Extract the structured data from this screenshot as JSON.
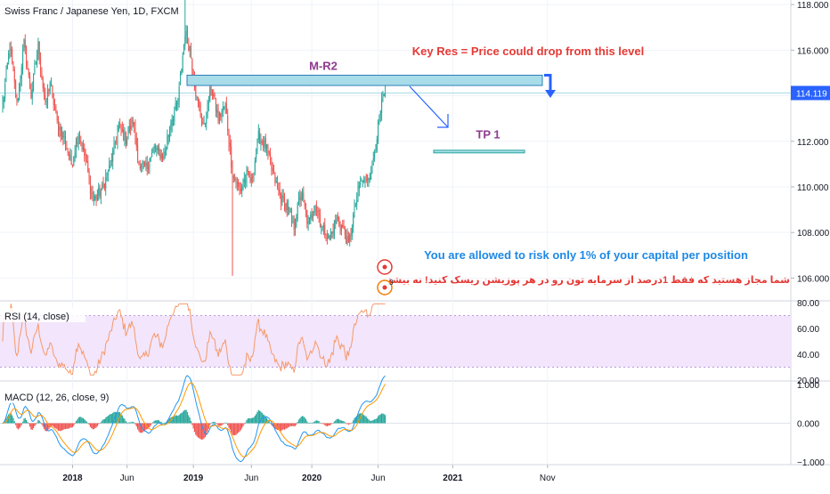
{
  "chart_data": {
    "type": "candlestick",
    "title": "Swiss Franc / Japanese Yen, 1D, FXCM",
    "x_ticks": [
      "2018",
      "Jun",
      "2019",
      "Jun",
      "2020",
      "Jun",
      "2021",
      "Nov"
    ],
    "price_axis": {
      "ticks": [
        "118.000",
        "116.000",
        "114.000",
        "112.000",
        "110.000",
        "108.000",
        "106.000"
      ],
      "range": [
        105.0,
        118.2
      ],
      "last_price_label": "114.119",
      "last_price": 114.119
    },
    "price_anchors": [
      [
        0,
        113.6
      ],
      [
        6,
        116.2
      ],
      [
        12,
        113.6
      ],
      [
        18,
        116.3
      ],
      [
        24,
        114.0
      ],
      [
        30,
        116.2
      ],
      [
        36,
        113.5
      ],
      [
        40,
        114.6
      ],
      [
        46,
        112.8
      ],
      [
        52,
        112.1
      ],
      [
        58,
        111.0
      ],
      [
        64,
        112.4
      ],
      [
        70,
        111.2
      ],
      [
        76,
        109.4
      ],
      [
        84,
        109.9
      ],
      [
        90,
        110.8
      ],
      [
        98,
        112.6
      ],
      [
        104,
        112.1
      ],
      [
        110,
        112.9
      ],
      [
        116,
        110.7
      ],
      [
        122,
        110.9
      ],
      [
        128,
        111.7
      ],
      [
        136,
        111.3
      ],
      [
        142,
        112.9
      ],
      [
        148,
        113.7
      ],
      [
        154,
        116.8
      ],
      [
        158,
        116.1
      ],
      [
        164,
        113.8
      ],
      [
        170,
        112.6
      ],
      [
        176,
        114.4
      ],
      [
        182,
        113.0
      ],
      [
        188,
        113.6
      ],
      [
        194,
        110.6
      ],
      [
        200,
        109.8
      ],
      [
        206,
        110.5
      ],
      [
        210,
        110.2
      ],
      [
        216,
        112.2
      ],
      [
        222,
        111.8
      ],
      [
        228,
        110.6
      ],
      [
        234,
        109.6
      ],
      [
        240,
        109.1
      ],
      [
        246,
        108.3
      ],
      [
        252,
        109.8
      ],
      [
        258,
        108.3
      ],
      [
        264,
        109.3
      ],
      [
        270,
        108.2
      ],
      [
        276,
        107.7
      ],
      [
        282,
        108.6
      ],
      [
        288,
        108.1
      ],
      [
        292,
        107.4
      ],
      [
        296,
        108.7
      ],
      [
        302,
        110.2
      ],
      [
        308,
        110.4
      ],
      [
        312,
        110.9
      ],
      [
        316,
        112.3
      ],
      [
        320,
        113.6
      ],
      [
        323,
        114.1
      ]
    ],
    "annotations": {
      "zone_label": "M-R2",
      "key_res_text": "Key Res = Price could drop from this level",
      "tp_label": "TP 1",
      "zone_top": 114.9,
      "zone_bottom": 114.45,
      "tp_level": 111.55,
      "risk_note_en": "You are allowed to risk only 1% of your capital per position",
      "risk_note_fa": "شما مجاز هستید که فقط 1درصد از سرمایه تون رو در هر پوزیشن ریسک کنید! نه بیشتر",
      "badge_count": "3"
    },
    "rsi": {
      "label": "RSI (14, close)",
      "ticks": [
        "80.00",
        "60.00",
        "40.00",
        "20.00"
      ],
      "band": [
        30,
        70
      ],
      "range": [
        20,
        80
      ]
    },
    "macd": {
      "label": "MACD (12, 26, close, 9)",
      "ticks": [
        "1.000",
        "0.000",
        "−1.000"
      ],
      "range": [
        -1.05,
        1.05
      ]
    },
    "colors": {
      "up": "#26a69a",
      "down": "#ef5350",
      "zone_fill": "#a9dce9",
      "zone_stroke": "#2a7fb8",
      "arrow": "#2962ff",
      "rsi_line": "#f59a6a",
      "rsi_band": "#f3e5fb",
      "macd_line": "#2196f3",
      "signal_line": "#ff9800",
      "annotation_red": "#e53935",
      "annotation_purple": "#8e3b8e",
      "annotation_blue": "#1e88e5"
    }
  }
}
